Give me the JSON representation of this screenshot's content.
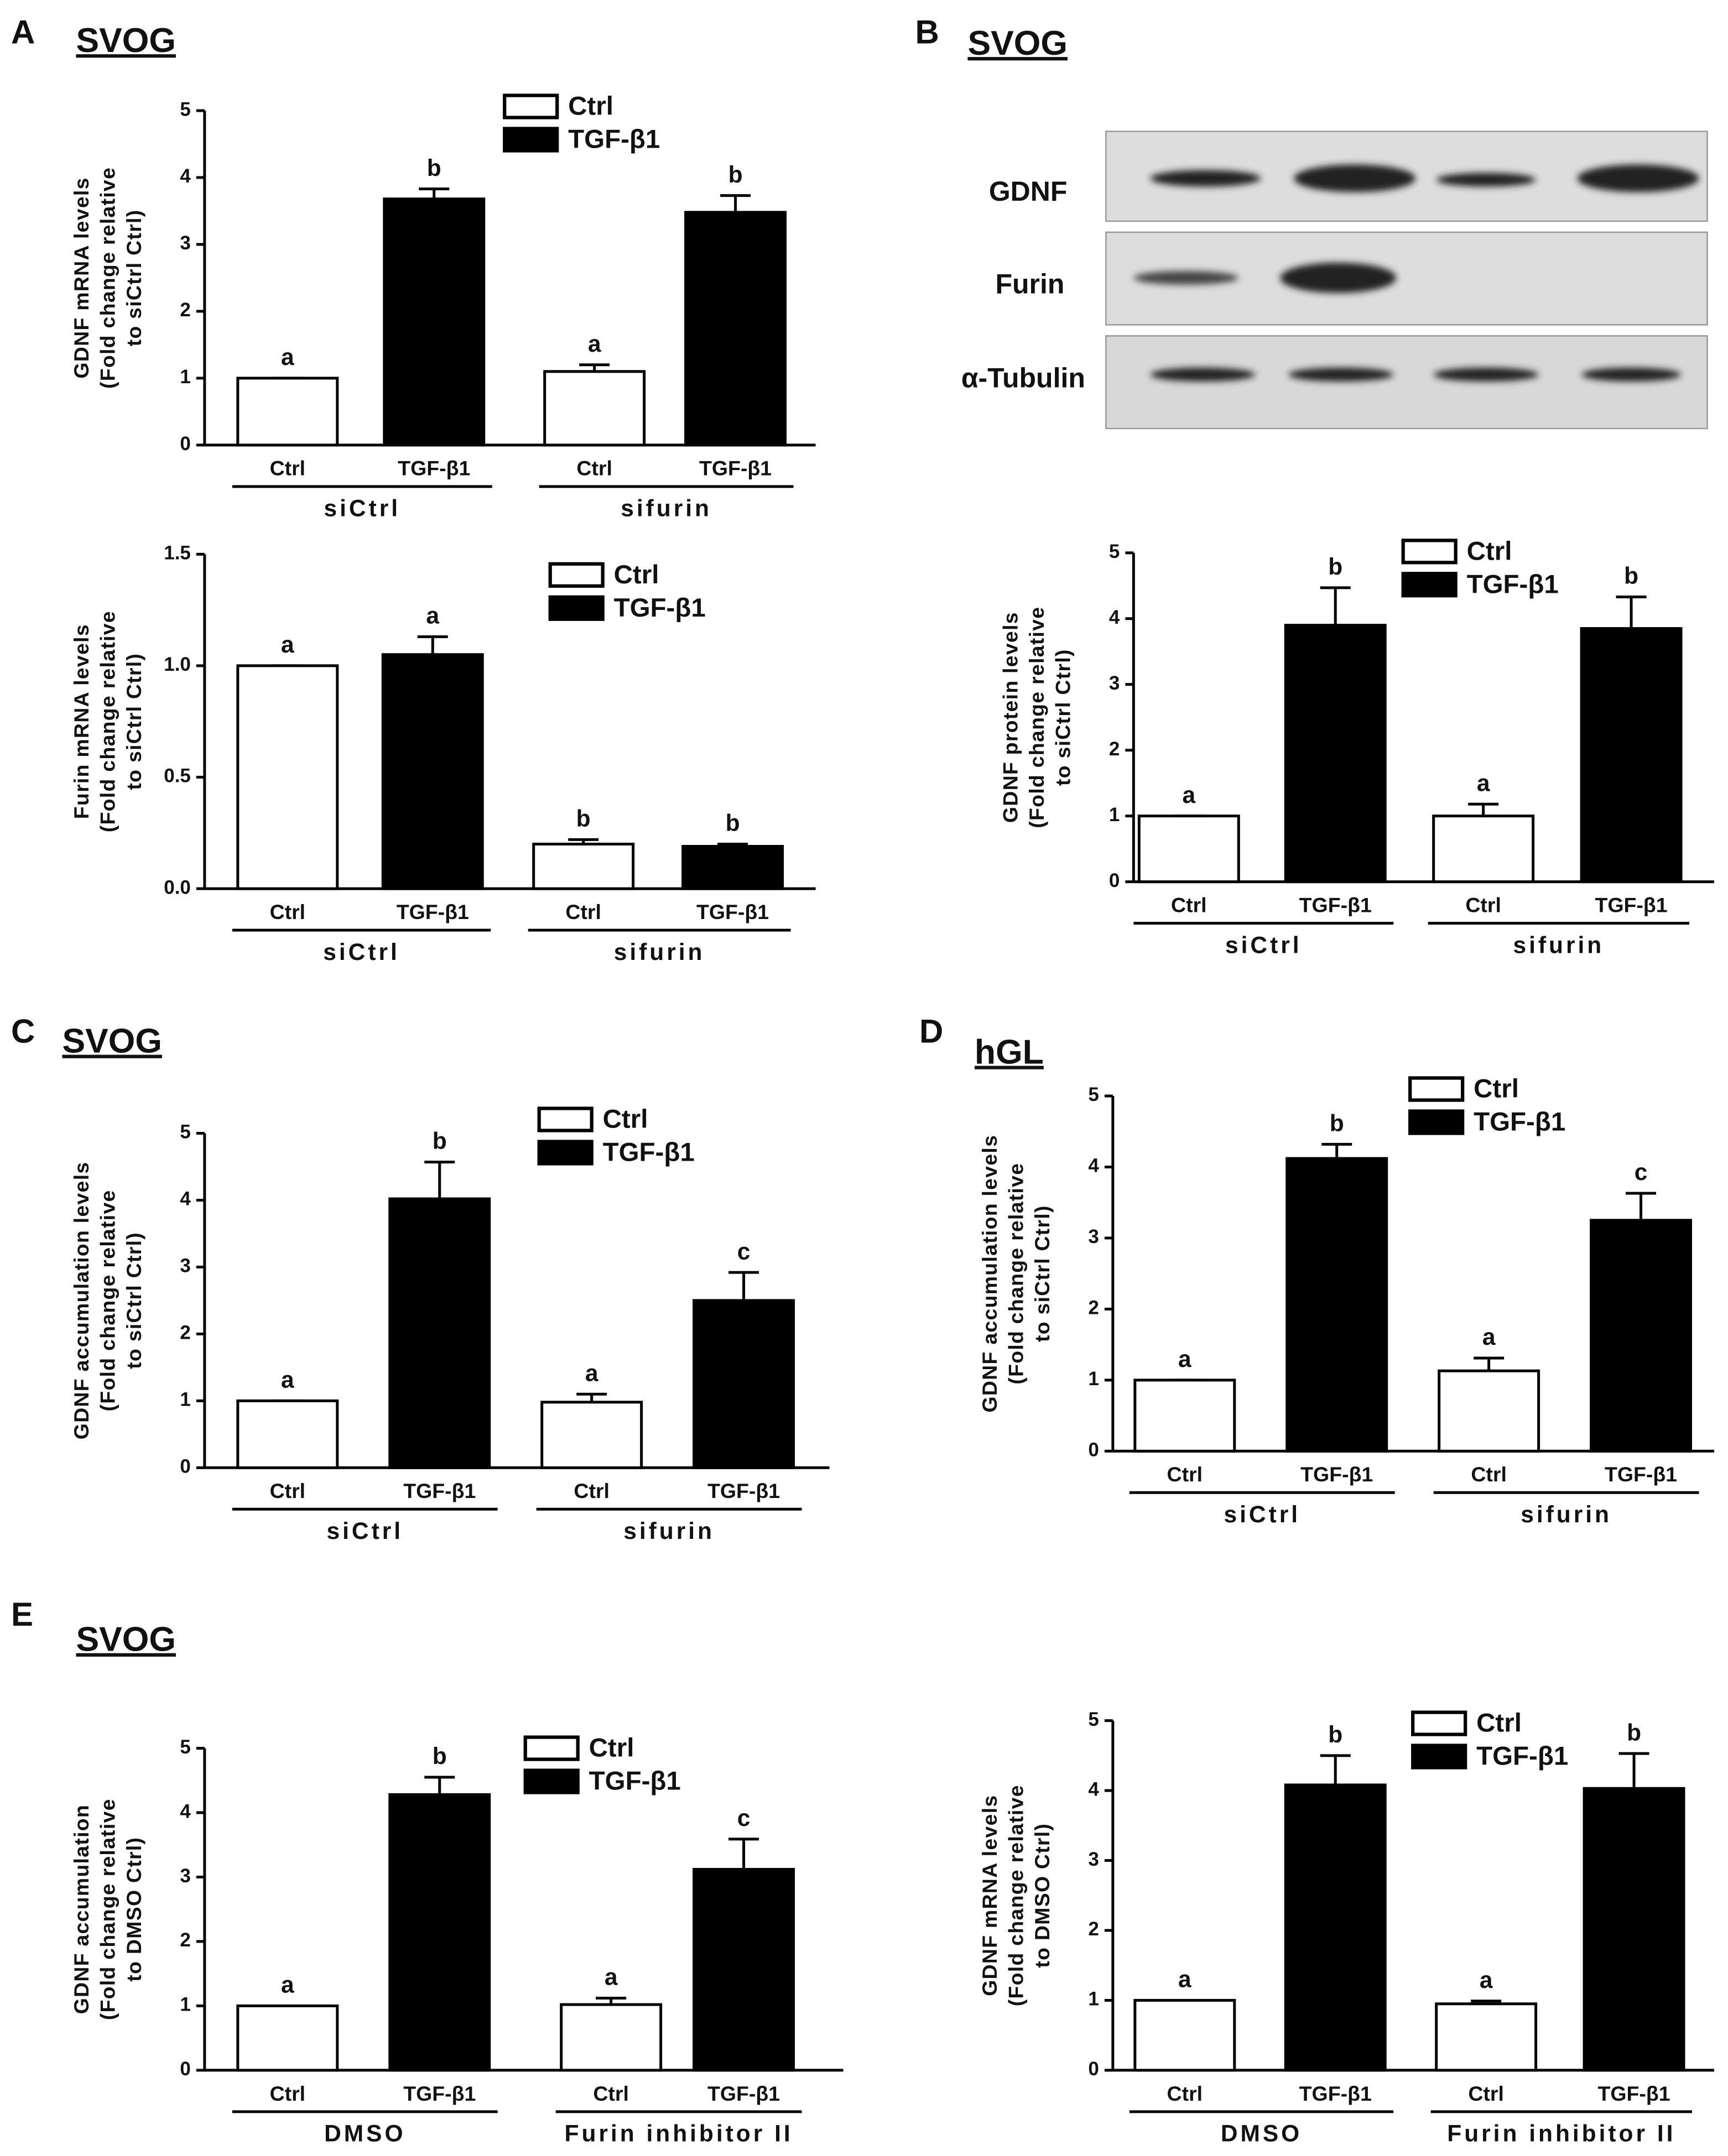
{
  "blot": {
    "panel": "B",
    "title": "SVOG",
    "rows": [
      "GDNF",
      "Furin",
      "α-Tubulin"
    ]
  },
  "chart_data": [
    {
      "type": "bar",
      "panel": "A",
      "title": "SVOG",
      "ylabel": [
        "GDNF mRNA levels",
        "(Fold change relative",
        "to siCtrl Ctrl)"
      ],
      "categories": [
        "Ctrl",
        "TGF-β1",
        "Ctrl",
        "TGF-β1"
      ],
      "groups": [
        "siCtrl",
        "sifurin"
      ],
      "legend": [
        "Ctrl",
        "TGF-β1"
      ],
      "colors": [
        "#ffffff",
        "#000000"
      ],
      "values": [
        1,
        3.68,
        1.1,
        3.48
      ],
      "errors": [
        0,
        0.15,
        0.1,
        0.25
      ],
      "letters": [
        "a",
        "b",
        "a",
        "b"
      ],
      "ylim": [
        0,
        5
      ],
      "yticks": [
        0,
        1,
        2,
        3,
        4,
        5
      ]
    },
    {
      "type": "bar",
      "ylabel": [
        "Furin mRNA levels",
        "(Fold change relative",
        "to siCtrl Ctrl)"
      ],
      "categories": [
        "Ctrl",
        "TGF-β1",
        "Ctrl",
        "TGF-β1"
      ],
      "groups": [
        "siCtrl",
        "sifurin"
      ],
      "legend": [
        "Ctrl",
        "TGF-β1"
      ],
      "colors": [
        "#ffffff",
        "#000000"
      ],
      "values": [
        1.0,
        1.05,
        0.2,
        0.19
      ],
      "errors": [
        0,
        0.08,
        0.02,
        0.01
      ],
      "letters": [
        "a",
        "a",
        "b",
        "b"
      ],
      "ylim": [
        0,
        1.5
      ],
      "yticks": [
        {
          "value": 0,
          "label": "0.0"
        },
        {
          "value": 0.5,
          "label": "0.5"
        },
        {
          "value": 1,
          "label": "1.0"
        },
        {
          "value": 1.5,
          "label": "1.5"
        }
      ]
    },
    {
      "type": "bar",
      "ylabel": [
        "GDNF protein levels",
        "(Fold change relative",
        "to siCtrl Ctrl)"
      ],
      "categories": [
        "Ctrl",
        "TGF-β1",
        "Ctrl",
        "TGF-β1"
      ],
      "groups": [
        "siCtrl",
        "sifurin"
      ],
      "legend": [
        "Ctrl",
        "TGF-β1"
      ],
      "colors": [
        "#ffffff",
        "#000000"
      ],
      "values": [
        1,
        3.9,
        1.0,
        3.85
      ],
      "errors": [
        0,
        0.57,
        0.18,
        0.48
      ],
      "letters": [
        "a",
        "b",
        "a",
        "b"
      ],
      "ylim": [
        0,
        5
      ],
      "yticks": [
        0,
        1,
        2,
        3,
        4,
        5
      ]
    },
    {
      "type": "bar",
      "panel": "C",
      "title": "SVOG",
      "ylabel": [
        "GDNF accumulation levels",
        "(Fold change relative",
        "to siCtrl Ctrl)"
      ],
      "categories": [
        "Ctrl",
        "TGF-β1",
        "Ctrl",
        "TGF-β1"
      ],
      "groups": [
        "siCtrl",
        "sifurin"
      ],
      "legend": [
        "Ctrl",
        "TGF-β1"
      ],
      "colors": [
        "#ffffff",
        "#000000"
      ],
      "values": [
        1,
        4.02,
        0.98,
        2.5
      ],
      "errors": [
        0,
        0.55,
        0.12,
        0.42
      ],
      "letters": [
        "a",
        "b",
        "a",
        "c"
      ],
      "ylim": [
        0,
        5
      ],
      "yticks": [
        0,
        1,
        2,
        3,
        4,
        5
      ]
    },
    {
      "type": "bar",
      "panel": "D",
      "title": "hGL",
      "ylabel": [
        "GDNF accumulation levels",
        "(Fold change relative",
        "to siCtrl Ctrl)"
      ],
      "categories": [
        "Ctrl",
        "TGF-β1",
        "Ctrl",
        "TGF-β1"
      ],
      "groups": [
        "siCtrl",
        "sifurin"
      ],
      "legend": [
        "Ctrl",
        "TGF-β1"
      ],
      "colors": [
        "#ffffff",
        "#000000"
      ],
      "values": [
        1,
        4.12,
        1.13,
        3.25
      ],
      "errors": [
        0,
        0.2,
        0.18,
        0.38
      ],
      "letters": [
        "a",
        "b",
        "a",
        "c"
      ],
      "ylim": [
        0,
        5
      ],
      "yticks": [
        0,
        1,
        2,
        3,
        4,
        5
      ]
    },
    {
      "type": "bar",
      "panel": "E",
      "title": "SVOG",
      "ylabel": [
        "GDNF accumulation",
        "(Fold change relative",
        "to DMSO Ctrl)"
      ],
      "categories": [
        "Ctrl",
        "TGF-β1",
        "Ctrl",
        "TGF-β1"
      ],
      "groups": [
        "DMSO",
        "Furin inhibitor II"
      ],
      "legend": [
        "Ctrl",
        "TGF-β1"
      ],
      "colors": [
        "#ffffff",
        "#000000"
      ],
      "values": [
        1,
        4.28,
        1.02,
        3.12
      ],
      "errors": [
        0,
        0.27,
        0.1,
        0.47
      ],
      "letters": [
        "a",
        "b",
        "a",
        "c"
      ],
      "ylim": [
        0,
        5
      ],
      "yticks": [
        0,
        1,
        2,
        3,
        4,
        5
      ]
    },
    {
      "type": "bar",
      "ylabel": [
        "GDNF mRNA levels",
        "(Fold change relative",
        "to DMSO Ctrl)"
      ],
      "categories": [
        "Ctrl",
        "TGF-β1",
        "Ctrl",
        "TGF-β1"
      ],
      "groups": [
        "DMSO",
        "Furin inhibitor II"
      ],
      "legend": [
        "Ctrl",
        "TGF-β1"
      ],
      "colors": [
        "#ffffff",
        "#000000"
      ],
      "values": [
        1,
        4.08,
        0.95,
        4.03
      ],
      "errors": [
        0,
        0.42,
        0.04,
        0.5
      ],
      "letters": [
        "a",
        "b",
        "a",
        "b"
      ],
      "ylim": [
        0,
        5
      ],
      "yticks": [
        0,
        1,
        2,
        3,
        4,
        5
      ]
    }
  ]
}
